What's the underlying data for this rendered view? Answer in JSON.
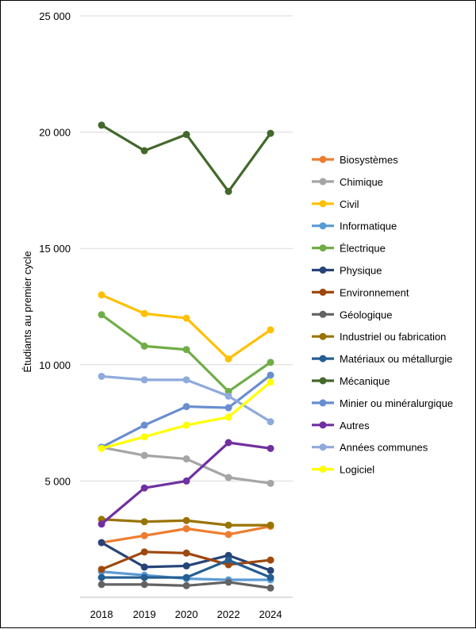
{
  "chart_data": {
    "type": "line",
    "title": "",
    "xlabel": "",
    "ylabel": "Étudiants au premier cycle",
    "x": [
      "2018",
      "2019",
      "2020",
      "2022",
      "2024"
    ],
    "ylim": [
      0,
      25000
    ],
    "yticks": [
      0,
      5000,
      10000,
      15000,
      20000,
      25000
    ],
    "ytick_labels": [
      "",
      "5 000",
      "10 000",
      "15 000",
      "20 000",
      "25 000"
    ],
    "grid": true,
    "legend": "right",
    "series": [
      {
        "name": "Biosystèmes",
        "color": "#ED7D31",
        "values": [
          2350,
          2650,
          2950,
          2700,
          3050
        ]
      },
      {
        "name": "Chimique",
        "color": "#A5A5A5",
        "values": [
          6450,
          6100,
          5950,
          5150,
          4900
        ]
      },
      {
        "name": "Civil",
        "color": "#FFC000",
        "values": [
          13000,
          12200,
          12000,
          10250,
          11500
        ]
      },
      {
        "name": "Informatique",
        "color": "#5B9BD5",
        "values": [
          1100,
          950,
          800,
          750,
          750
        ]
      },
      {
        "name": "Électrique",
        "color": "#70AD47",
        "values": [
          12150,
          10800,
          10650,
          8850,
          10100
        ]
      },
      {
        "name": "Physique",
        "color": "#264478",
        "values": [
          2350,
          1300,
          1350,
          1800,
          1150
        ]
      },
      {
        "name": "Environnement",
        "color": "#9E480E",
        "values": [
          1200,
          1950,
          1900,
          1400,
          1600
        ]
      },
      {
        "name": "Géologique",
        "color": "#636363",
        "values": [
          550,
          550,
          500,
          650,
          400
        ]
      },
      {
        "name": "Industriel ou fabrication",
        "color": "#997300",
        "values": [
          3350,
          3250,
          3300,
          3100,
          3100
        ]
      },
      {
        "name": "Matériaux ou métallurgie",
        "color": "#255E91",
        "values": [
          850,
          850,
          850,
          1600,
          850
        ]
      },
      {
        "name": "Mécanique",
        "color": "#43682B",
        "values": [
          20300,
          19200,
          19900,
          17450,
          19950
        ]
      },
      {
        "name": "Minier ou minéralurgique",
        "color": "#698ED0",
        "values": [
          6450,
          7400,
          8200,
          8150,
          9550
        ]
      },
      {
        "name": "Autres",
        "color": "#7030A0",
        "values": [
          3150,
          4700,
          5000,
          6650,
          6400
        ]
      },
      {
        "name": "Années communes",
        "color": "#8FAADC",
        "values": [
          9500,
          9350,
          9350,
          8650,
          7550
        ]
      },
      {
        "name": "Logiciel",
        "color": "#FFFF00",
        "values": [
          6400,
          6900,
          7400,
          7750,
          9250
        ]
      }
    ]
  }
}
